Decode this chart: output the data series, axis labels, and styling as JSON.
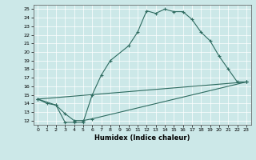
{
  "xlabel": "Humidex (Indice chaleur)",
  "background_color": "#cce8e8",
  "line_color": "#2e6b60",
  "xlim": [
    -0.5,
    23.5
  ],
  "ylim": [
    11.5,
    25.5
  ],
  "xticks": [
    0,
    1,
    2,
    3,
    4,
    5,
    6,
    7,
    8,
    9,
    10,
    11,
    12,
    13,
    14,
    15,
    16,
    17,
    18,
    19,
    20,
    21,
    22,
    23
  ],
  "yticks": [
    12,
    13,
    14,
    15,
    16,
    17,
    18,
    19,
    20,
    21,
    22,
    23,
    24,
    25
  ],
  "line1_x": [
    0,
    1,
    2,
    3,
    4,
    5,
    6,
    7,
    8,
    10,
    11,
    12,
    13,
    14,
    15,
    16,
    17,
    18,
    19,
    20,
    21,
    22,
    23
  ],
  "line1_y": [
    14.5,
    14.0,
    13.8,
    11.8,
    11.8,
    11.8,
    15.0,
    17.3,
    19.0,
    20.7,
    22.3,
    24.8,
    24.5,
    25.0,
    24.7,
    24.7,
    23.8,
    22.3,
    21.3,
    19.5,
    18.0,
    16.5,
    16.5
  ],
  "line2_x": [
    0,
    2,
    3,
    4,
    5,
    6,
    23
  ],
  "line2_y": [
    14.5,
    13.8,
    12.8,
    12.0,
    12.0,
    12.2,
    16.5
  ],
  "line3_x": [
    0,
    23
  ],
  "line3_y": [
    14.5,
    16.5
  ],
  "figwidth": 3.2,
  "figheight": 2.0,
  "dpi": 100
}
